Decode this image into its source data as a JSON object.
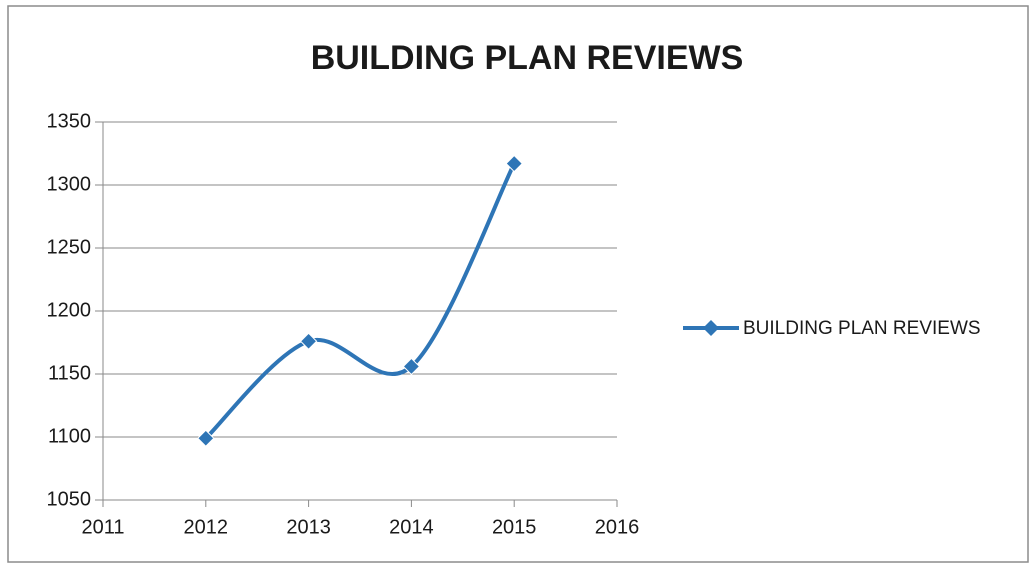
{
  "chart_data": {
    "type": "line",
    "title": "BUILDING PLAN REVIEWS",
    "x": [
      2012,
      2013,
      2014,
      2015
    ],
    "series": [
      {
        "name": "BUILDING PLAN REVIEWS",
        "color": "#2e75b6",
        "values": [
          1099,
          1176,
          1156,
          1317
        ]
      }
    ],
    "xlim": [
      2011,
      2016
    ],
    "xticks": [
      2011,
      2012,
      2013,
      2014,
      2015,
      2016
    ],
    "ylim": [
      1050,
      1350
    ],
    "yticks": [
      1050,
      1100,
      1150,
      1200,
      1250,
      1300,
      1350
    ],
    "grid": true,
    "smooth": true,
    "legend": "right"
  }
}
